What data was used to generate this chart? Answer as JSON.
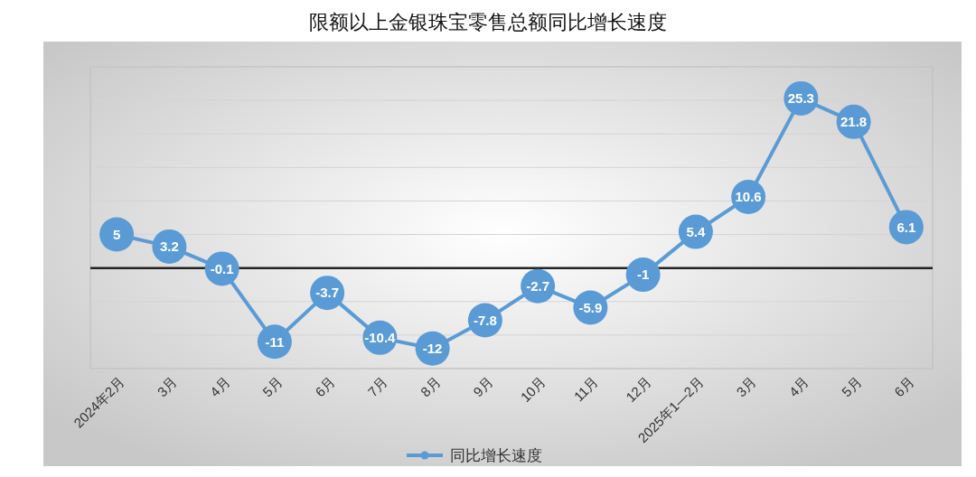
{
  "chart_data": {
    "type": "line",
    "title": "限额以上金银珠宝零售总额同比增长速度",
    "categories": [
      "2024年2月",
      "3月",
      "4月",
      "5月",
      "6月",
      "7月",
      "8月",
      "9月",
      "10月",
      "11月",
      "12月",
      "2025年1—2月",
      "3月",
      "4月",
      "5月",
      "6月"
    ],
    "series": [
      {
        "name": "同比增长速度",
        "color": "#5b9bd5",
        "values": [
          5,
          3.2,
          -0.1,
          -11,
          -3.7,
          -10.4,
          -12,
          -7.8,
          -2.7,
          -5.9,
          -1,
          5.4,
          10.6,
          25.3,
          21.8,
          6.1
        ]
      }
    ],
    "ylim": [
      -15,
      30
    ],
    "yticks": [
      {
        "value": -15,
        "label": null
      },
      {
        "value": -10,
        "label": null
      },
      {
        "value": -5,
        "label": null
      },
      {
        "value": 0,
        "label": null
      },
      {
        "value": 5,
        "label": null
      },
      {
        "value": 10,
        "label": null
      },
      {
        "value": 15,
        "label": null
      },
      {
        "value": 20,
        "label": null
      },
      {
        "value": 25,
        "label": null
      },
      {
        "value": 30,
        "label": null
      }
    ],
    "tick_labels": "x",
    "grid": "y",
    "legend": "bottom",
    "marker": "circle",
    "line_style": "solid",
    "data_labels": true
  }
}
